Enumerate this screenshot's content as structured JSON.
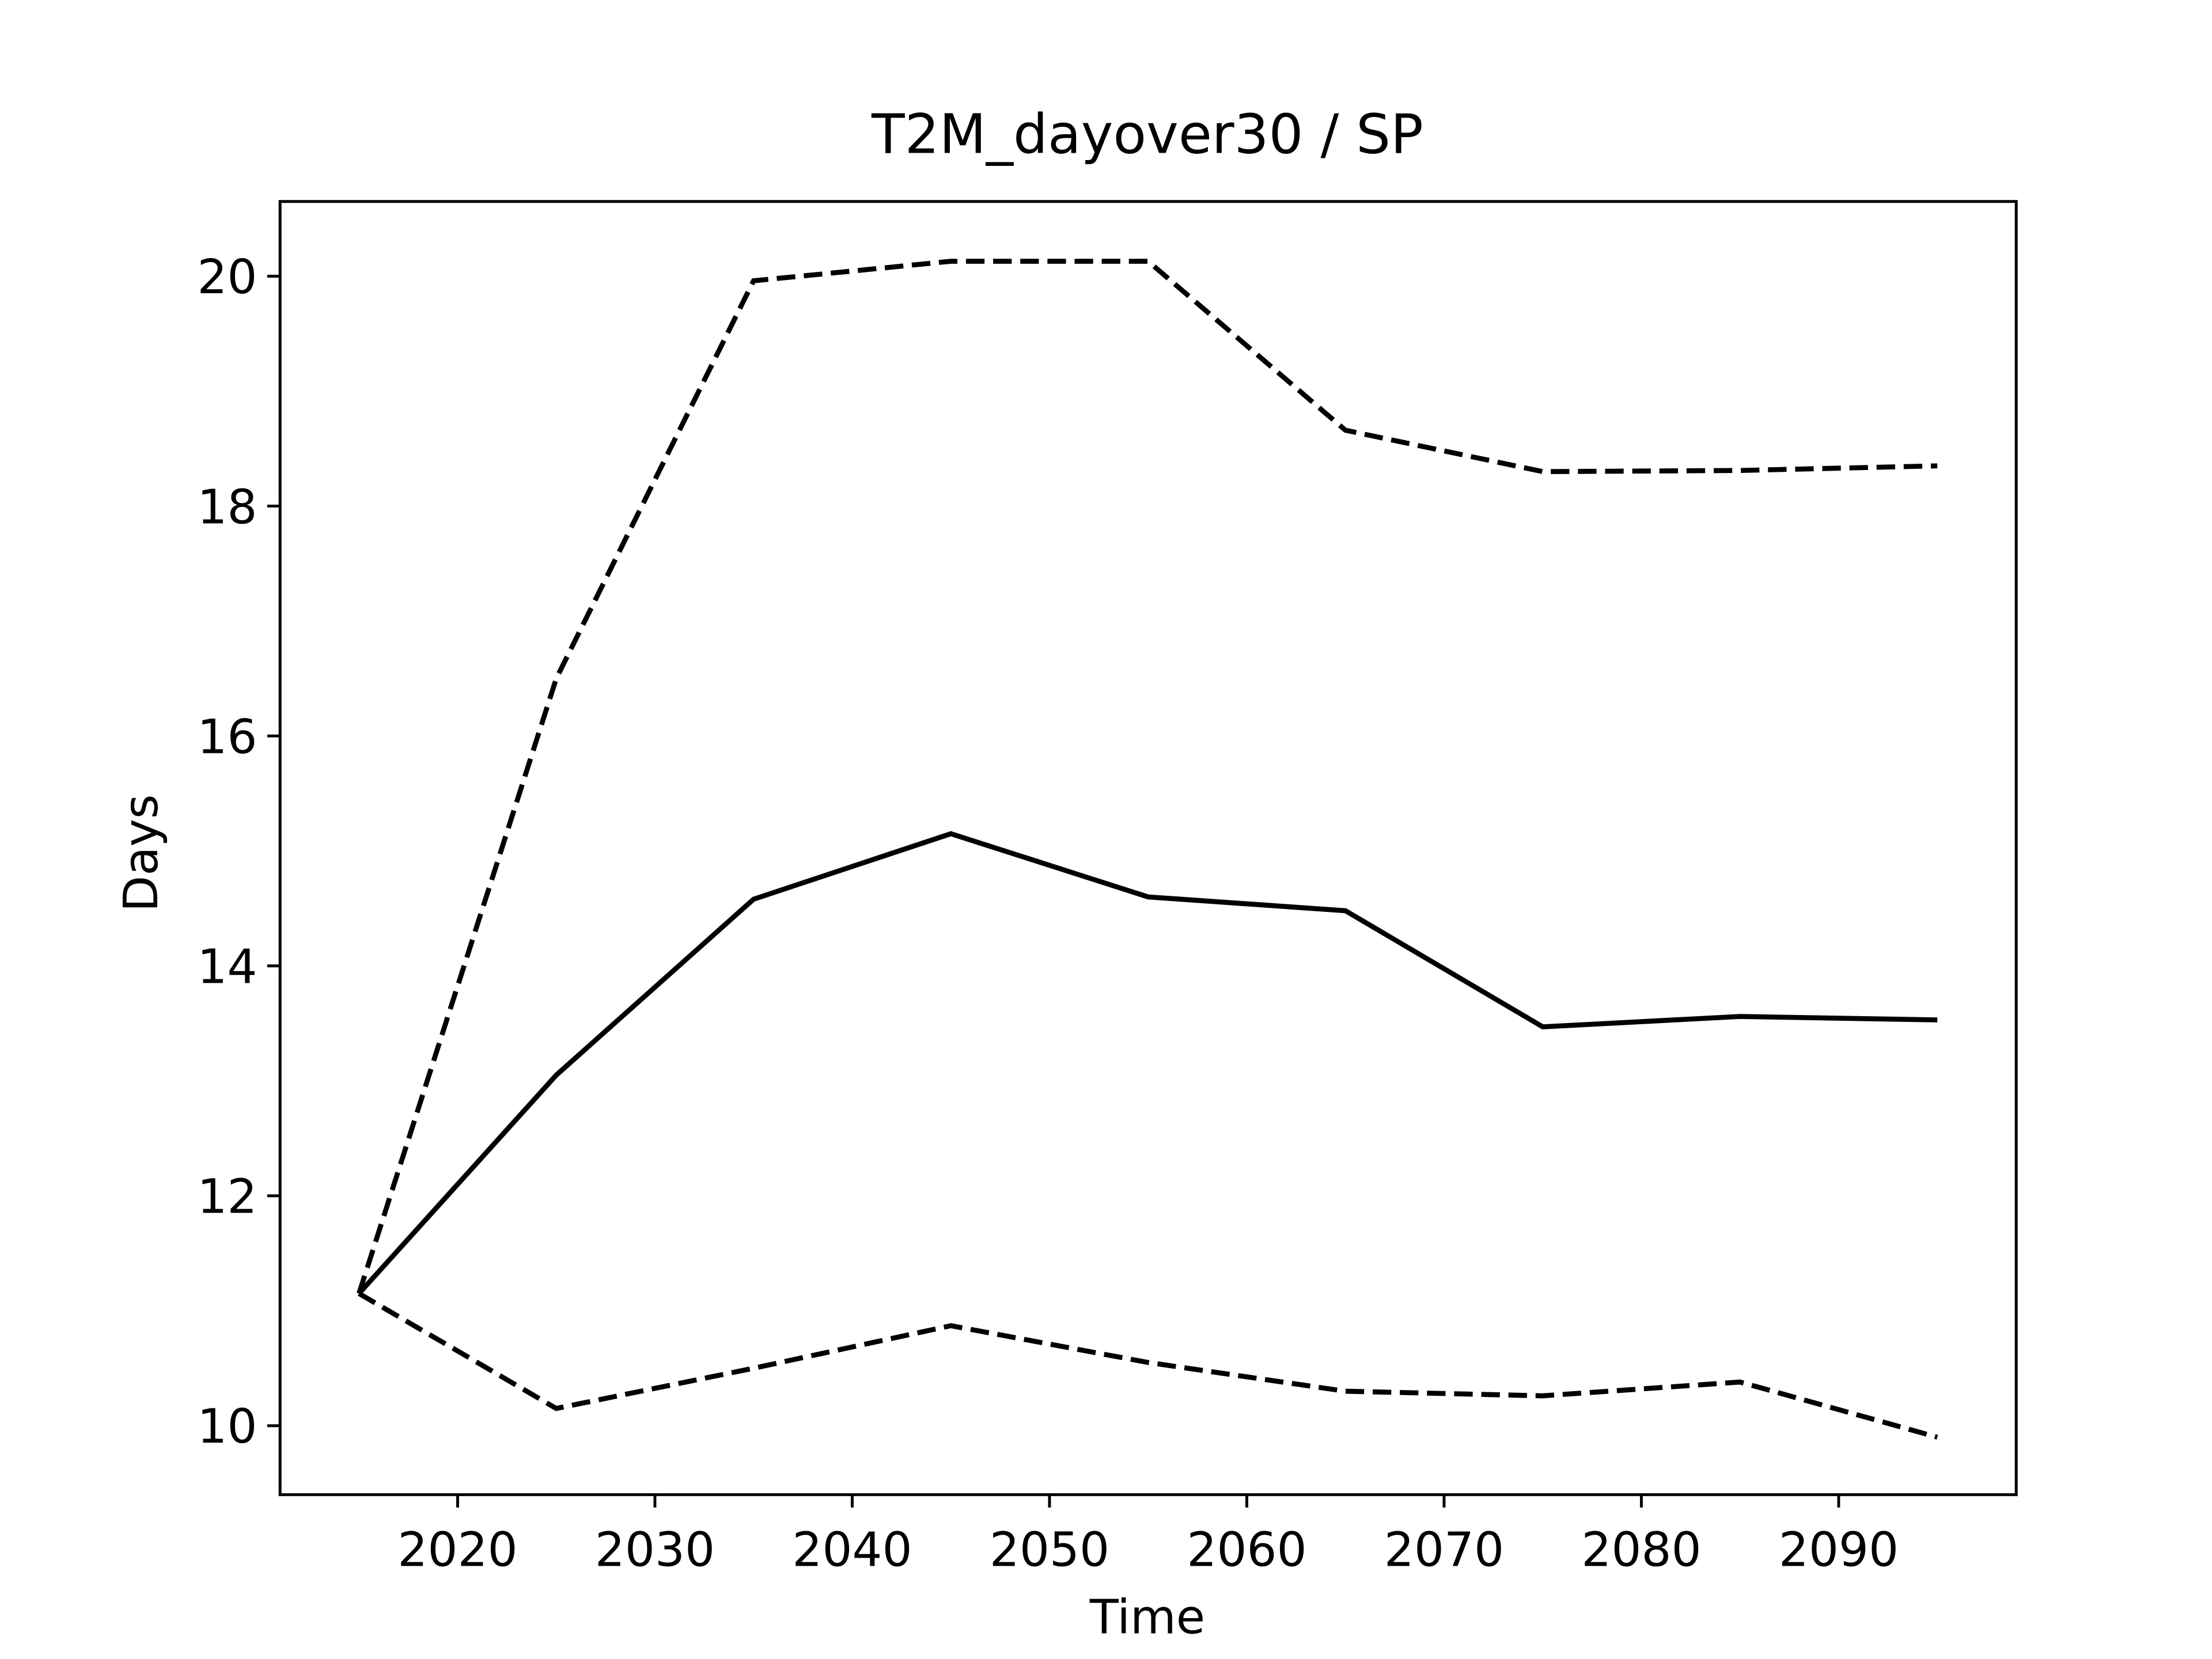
{
  "chart_data": {
    "type": "line",
    "title": "T2M_dayover30 / SP",
    "x_label": "Time",
    "y_label": "Days",
    "x": [
      2015,
      2025,
      2035,
      2045,
      2055,
      2065,
      2075,
      2085,
      2095
    ],
    "series": [
      {
        "color": "#000000",
        "dash": "solid",
        "values": [
          11.15,
          13.05,
          14.58,
          15.15,
          14.6,
          14.48,
          13.47,
          13.56,
          13.53
        ]
      },
      {
        "color": "#000000",
        "dash": "dashed",
        "values": [
          11.15,
          16.5,
          19.96,
          20.13,
          20.13,
          18.66,
          18.3,
          18.31,
          18.35
        ]
      },
      {
        "color": "#000000",
        "dash": "dashed",
        "values": [
          11.15,
          10.15,
          10.5,
          10.87,
          10.55,
          10.3,
          10.26,
          10.38,
          9.9
        ]
      }
    ],
    "xlim": [
      2011,
      2099
    ],
    "xticks": [
      2020,
      2030,
      2040,
      2050,
      2060,
      2070,
      2080,
      2090
    ],
    "ylim": [
      9.4,
      20.65
    ],
    "yticks": [
      10,
      12,
      14,
      16,
      18,
      20
    ]
  }
}
